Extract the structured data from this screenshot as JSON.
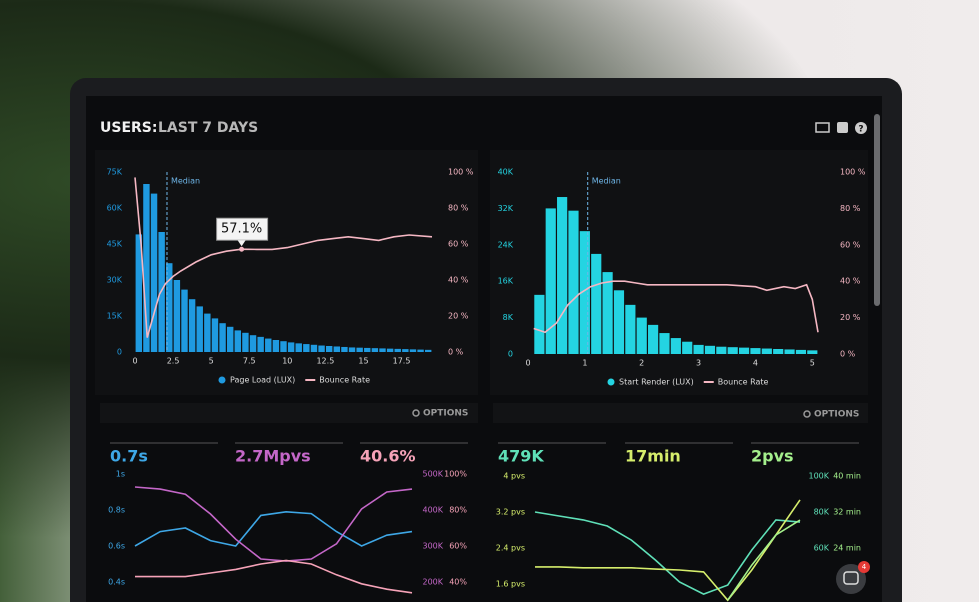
{
  "header": {
    "title_prefix": "USERS:",
    "title": "LAST 7 DAYS"
  },
  "options": [
    "OPTIONS",
    "OPTIONS"
  ],
  "notifications": 4,
  "chart_data": [
    {
      "type": "histogram",
      "bins": [
        0,
        0.5,
        1,
        1.5,
        2,
        2.5,
        3,
        3.5,
        4,
        4.5,
        5,
        5.5,
        6,
        6.5,
        7,
        7.5,
        8,
        8.5,
        9,
        9.5,
        10,
        10.5,
        11,
        11.5,
        12,
        12.5,
        13,
        13.5,
        14,
        14.5,
        15,
        15.5,
        16,
        16.5,
        17,
        17.5,
        18,
        18.5,
        19,
        19.5
      ],
      "xlim": [
        0,
        19.5
      ],
      "xticks": [
        0,
        2.5,
        5,
        7.5,
        10,
        12.5,
        15,
        17.5
      ],
      "ylim": [
        0,
        75000
      ],
      "yticks": [
        0,
        {
          "value": 15000,
          "label": "15K"
        },
        {
          "value": 30000,
          "label": "30K"
        },
        {
          "value": 45000,
          "label": "45K"
        },
        {
          "value": 60000,
          "label": "60K"
        },
        {
          "value": 75000,
          "label": "75K"
        }
      ],
      "y2lim": [
        0,
        100
      ],
      "y2ticks": [
        {
          "value": 0,
          "label": "0 %"
        },
        {
          "value": 20,
          "label": "20 %"
        },
        {
          "value": 40,
          "label": "40 %"
        },
        {
          "value": 60,
          "label": "60 %"
        },
        {
          "value": 80,
          "label": "80 %"
        },
        {
          "value": 100,
          "label": "100 %"
        }
      ],
      "median": {
        "label": "Median",
        "x": 2.1
      },
      "series": [
        {
          "name": "Page Load (LUX)",
          "color": "#1f9ae0",
          "values": [
            49000,
            70000,
            66000,
            50000,
            37000,
            30000,
            26000,
            22000,
            19000,
            16000,
            14000,
            12000,
            10500,
            9000,
            8000,
            7000,
            6300,
            5600,
            5000,
            4500,
            4000,
            3600,
            3300,
            3000,
            2700,
            2500,
            2300,
            2100,
            1900,
            1800,
            1700,
            1600,
            1500,
            1400,
            1300,
            1200,
            1100,
            1000,
            900
          ]
        },
        {
          "name": "Bounce Rate",
          "color": "#f5b7c3",
          "axis": "y2",
          "x": [
            0,
            0.4,
            0.8,
            1.2,
            1.6,
            2,
            2.5,
            3,
            4,
            5,
            6,
            7,
            8,
            9,
            10,
            11,
            12,
            13,
            14,
            15,
            16,
            17,
            18,
            19.5
          ],
          "values": [
            97,
            60,
            8,
            20,
            32,
            38,
            42,
            45,
            50,
            54,
            56,
            57.1,
            57,
            57,
            58,
            60,
            62,
            63,
            64,
            63,
            62,
            64,
            65,
            64
          ],
          "value_labels": [
            null,
            null,
            null,
            null,
            null,
            null,
            null,
            null,
            null,
            null,
            null,
            "57.1%",
            null,
            null,
            null,
            null,
            null,
            null,
            null,
            null,
            null,
            null,
            null,
            null
          ]
        }
      ]
    },
    {
      "type": "histogram",
      "bins": [
        0.1,
        0.3,
        0.5,
        0.7,
        0.9,
        1.1,
        1.3,
        1.5,
        1.7,
        1.9,
        2.1,
        2.3,
        2.5,
        2.7,
        2.9,
        3.1,
        3.3,
        3.5,
        3.7,
        3.9,
        4.1,
        4.3,
        4.5,
        4.7,
        4.9,
        5.1
      ],
      "xlim": [
        0,
        5.1
      ],
      "xticks": [
        0,
        1,
        2,
        3,
        4,
        5
      ],
      "ylim": [
        0,
        40000
      ],
      "yticks": [
        0,
        {
          "value": 8000,
          "label": "8K"
        },
        {
          "value": 16000,
          "label": "16K"
        },
        {
          "value": 24000,
          "label": "24K"
        },
        {
          "value": 32000,
          "label": "32K"
        },
        {
          "value": 40000,
          "label": "40K"
        }
      ],
      "y2lim": [
        0,
        100
      ],
      "y2ticks": [
        {
          "value": 0,
          "label": "0 %"
        },
        {
          "value": 20,
          "label": "20 %"
        },
        {
          "value": 40,
          "label": "40 %"
        },
        {
          "value": 60,
          "label": "60 %"
        },
        {
          "value": 80,
          "label": "80 %"
        },
        {
          "value": 100,
          "label": "100 %"
        }
      ],
      "median": {
        "label": "Median",
        "x": 1.05
      },
      "series": [
        {
          "name": "Start Render (LUX)",
          "color": "#24d4e2",
          "values": [
            13000,
            32000,
            34500,
            31500,
            27000,
            22000,
            18000,
            14000,
            10800,
            8000,
            6400,
            4600,
            3500,
            2700,
            2000,
            1800,
            1600,
            1500,
            1400,
            1300,
            1200,
            1100,
            1000,
            900,
            800
          ]
        },
        {
          "name": "Bounce Rate",
          "color": "#f5b7c3",
          "axis": "y2",
          "x": [
            0.1,
            0.3,
            0.5,
            0.7,
            0.9,
            1.1,
            1.3,
            1.5,
            1.7,
            1.9,
            2.1,
            2.5,
            3,
            3.5,
            4,
            4.2,
            4.5,
            4.7,
            4.9,
            5,
            5.1
          ],
          "values": [
            14,
            12,
            17,
            27,
            33,
            37,
            39,
            40,
            40,
            39,
            38,
            38,
            38,
            38,
            37,
            35,
            37,
            36,
            38,
            30,
            12
          ]
        }
      ]
    },
    {
      "type": "line",
      "ylim": [
        0.4,
        1
      ],
      "yticks": [
        {
          "value": 1,
          "label": "1s"
        },
        {
          "value": 0.8,
          "label": "0.8s"
        },
        {
          "value": 0.6,
          "label": "0.6s"
        },
        {
          "value": 0.4,
          "label": "0.4s"
        }
      ],
      "y2lim": [
        200000,
        500000
      ],
      "y2ticks": [
        {
          "value": 500000,
          "label": "500K"
        },
        {
          "value": 400000,
          "label": "400K"
        },
        {
          "value": 300000,
          "label": "300K"
        },
        {
          "value": 200000,
          "label": "200K"
        }
      ],
      "y3lim": [
        40,
        100
      ],
      "y3ticks": [
        {
          "value": 100,
          "label": "100%"
        },
        {
          "value": 80,
          "label": "80%"
        },
        {
          "value": 60,
          "label": "60%"
        },
        {
          "value": 40,
          "label": "40%"
        }
      ],
      "series": [
        {
          "name": "0.7s",
          "color": "#3ea7e6",
          "values": [
            0.6,
            0.68,
            0.7,
            0.63,
            0.6,
            0.77,
            0.79,
            0.78,
            0.68,
            0.6,
            0.66,
            0.68
          ]
        },
        {
          "name": "2.7Mpvs",
          "color": "#c467c8",
          "axis": "y2",
          "values": [
            464000,
            458000,
            444000,
            389000,
            319000,
            264000,
            258000,
            264000,
            306000,
            403000,
            450000,
            458000
          ]
        },
        {
          "name": "40.6%",
          "color": "#f6a3b8",
          "axis": "y3",
          "values": [
            43,
            43,
            43,
            45,
            47,
            50,
            52,
            50,
            44,
            39,
            36,
            34
          ]
        }
      ]
    },
    {
      "type": "line",
      "ylim": [
        1.6,
        4
      ],
      "yticks": [
        {
          "value": 4,
          "label": "4 pvs"
        },
        {
          "value": 3.2,
          "label": "3.2 pvs"
        },
        {
          "value": 2.4,
          "label": "2.4 pvs"
        },
        {
          "value": 1.6,
          "label": "1.6 pvs"
        }
      ],
      "y2lim": [
        40000,
        100000
      ],
      "y2ticks": [
        {
          "value": 100000,
          "label": "100K"
        },
        {
          "value": 80000,
          "label": "80K"
        },
        {
          "value": 60000,
          "label": "60K"
        }
      ],
      "y3lim": [
        16,
        40
      ],
      "y3ticks": [
        {
          "value": 40,
          "label": "40 min"
        },
        {
          "value": 32,
          "label": "32 min"
        },
        {
          "value": 24,
          "label": "24 min"
        }
      ],
      "series": [
        {
          "name": "479K",
          "color": "#5fe0b8",
          "axis": "y2",
          "values": [
            80000,
            77800,
            75600,
            72200,
            64400,
            53300,
            41100,
            34400,
            39400,
            58900,
            75600,
            74400
          ]
        },
        {
          "name": "17min",
          "color": "#d6ee6c",
          "values": [
            1.98,
            1.98,
            1.96,
            1.96,
            1.96,
            1.93,
            1.91,
            1.87,
            1.24,
            1.91,
            2.69,
            3.47
          ]
        },
        {
          "name": "2pvs",
          "color": "#a4f08c",
          "axis": "y3",
          "values": [
            null,
            null,
            null,
            null,
            null,
            null,
            null,
            null,
            12.4,
            20.2,
            26.9,
            30.2
          ]
        }
      ]
    }
  ]
}
